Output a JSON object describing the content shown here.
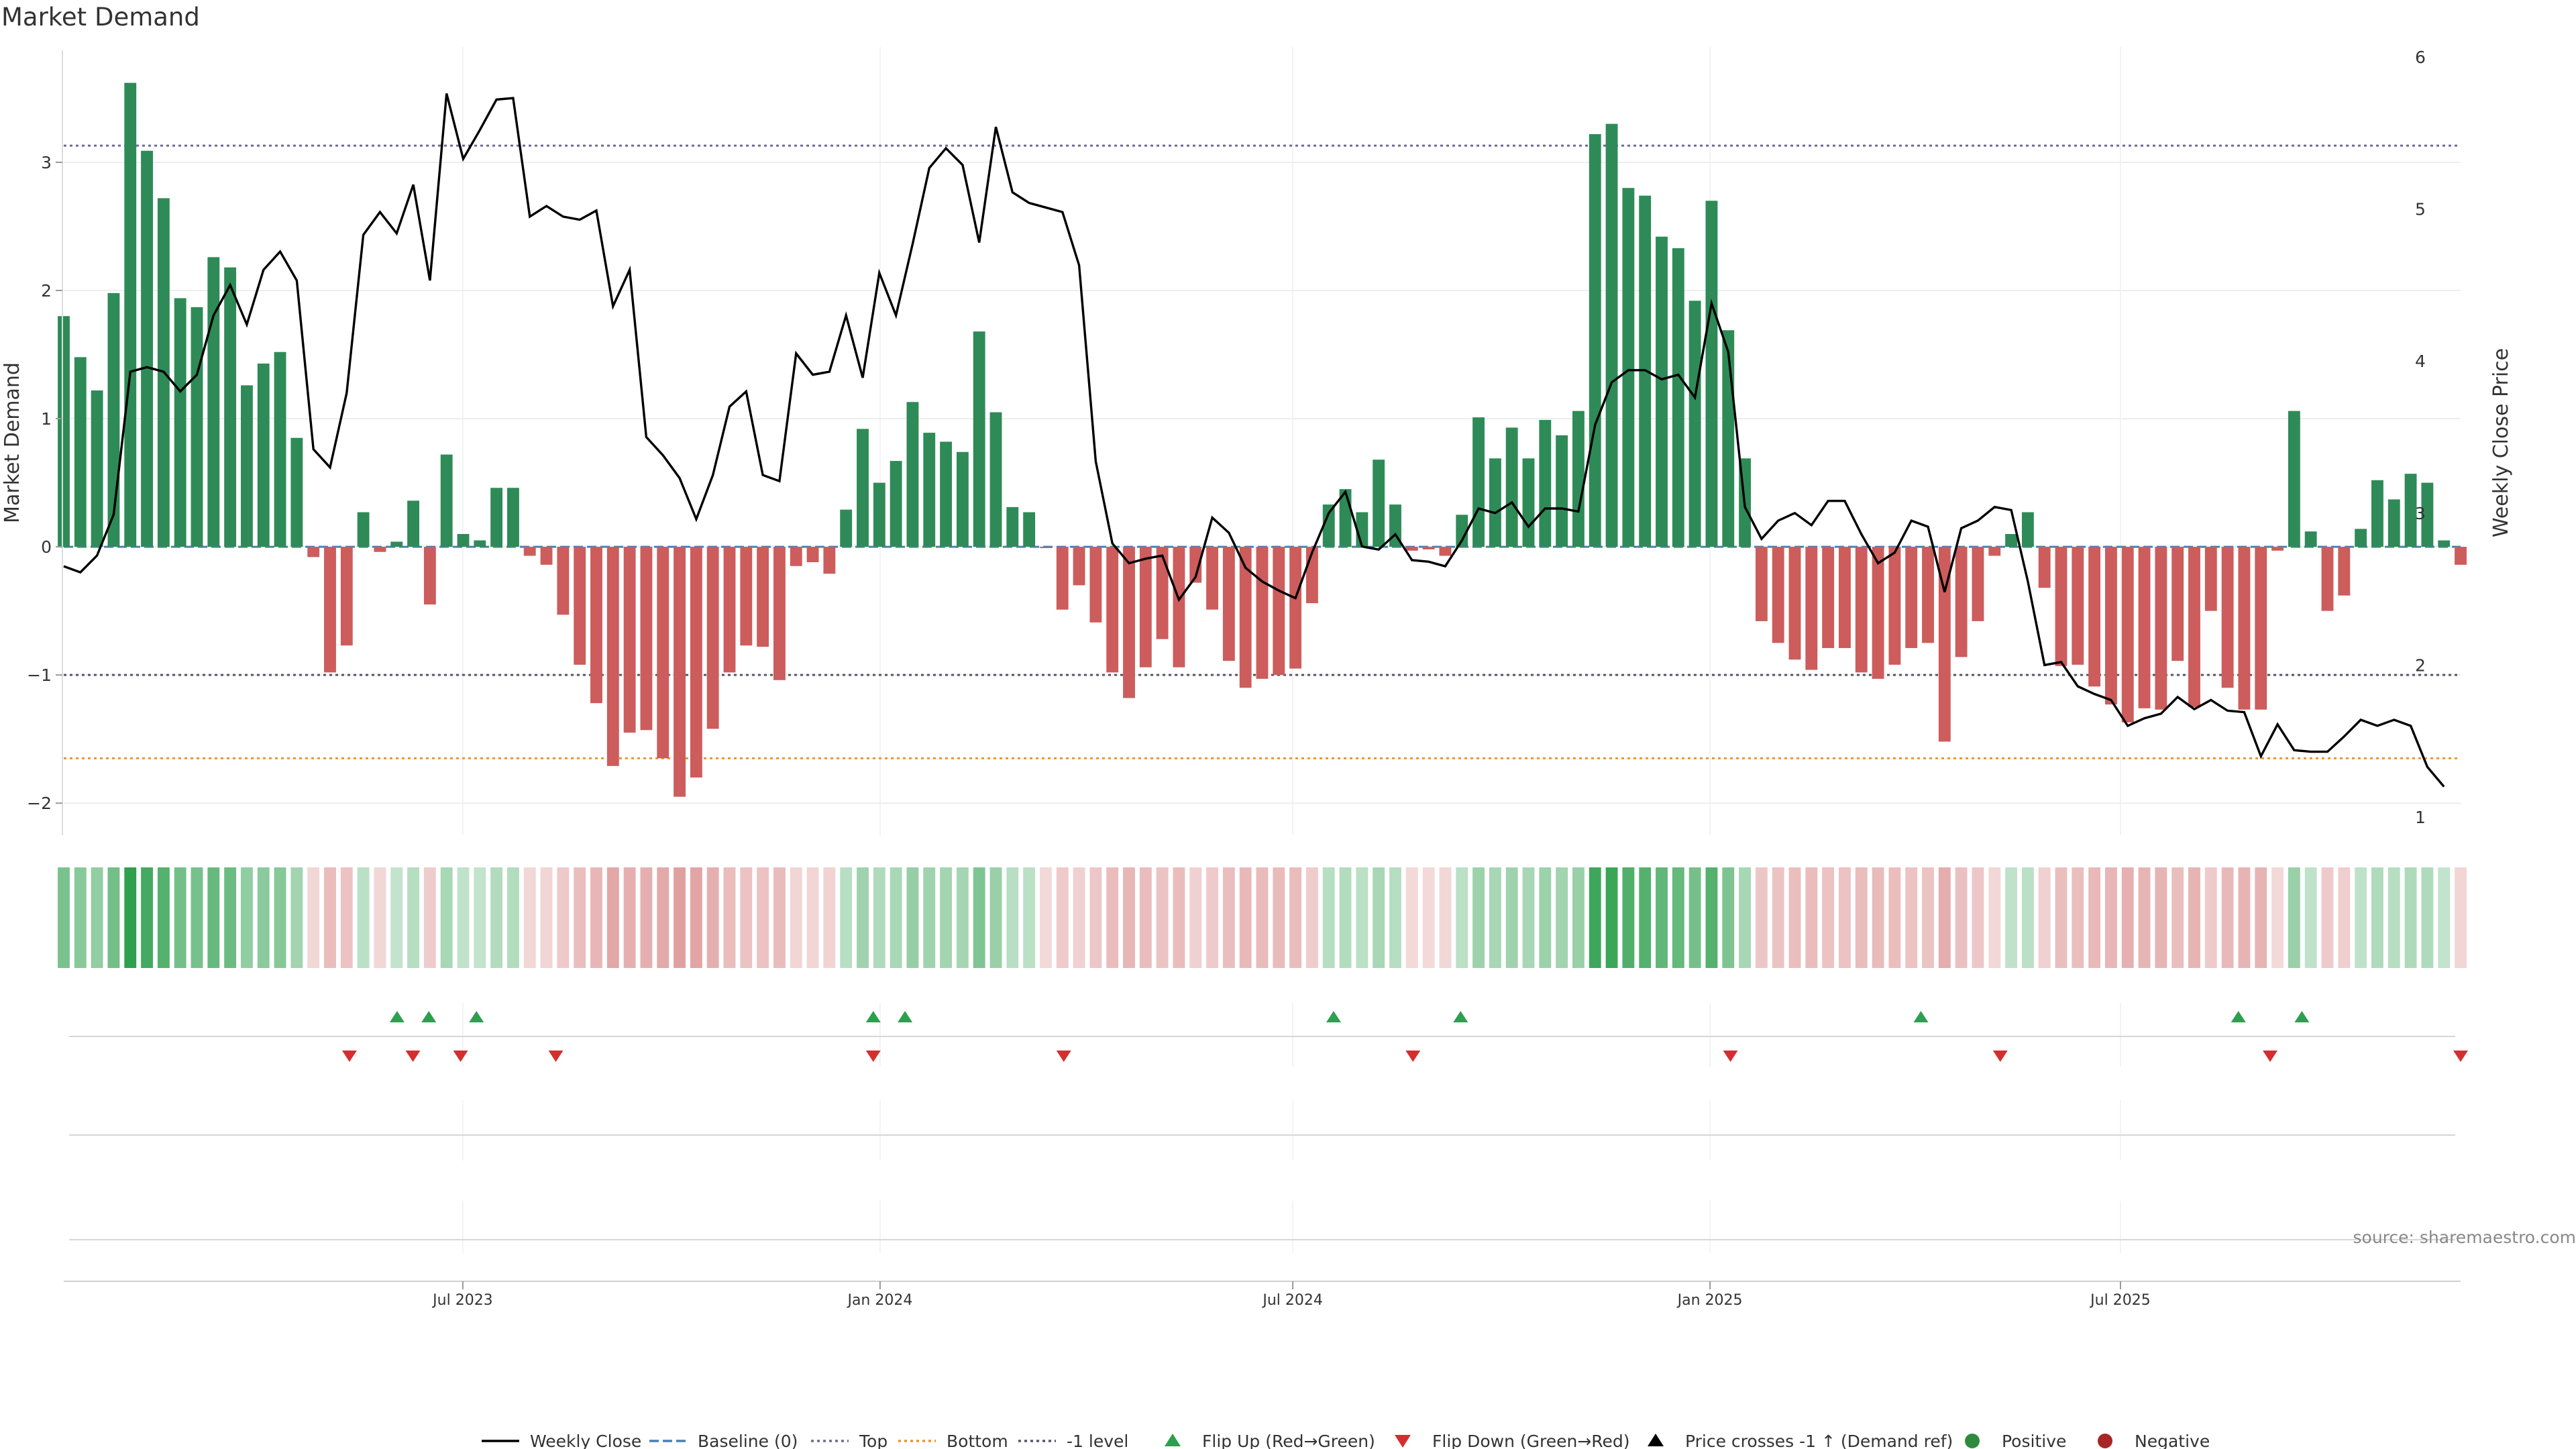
{
  "chart_data": {
    "type": "bar",
    "title": "Market Demand",
    "ylabel_left": "Market Demand",
    "ylabel_right": "Weekly Close Price",
    "source": "source: sharemaestro.com",
    "x_start": "2023-01-06",
    "x_end": "2025-11-28",
    "x_ticks": [
      {
        "date": "2023-07-01",
        "label": "Jul 2023"
      },
      {
        "date": "2024-01-01",
        "label": "Jan 2024"
      },
      {
        "date": "2024-07-01",
        "label": "Jul 2024"
      },
      {
        "date": "2025-01-01",
        "label": "Jan 2025"
      },
      {
        "date": "2025-07-01",
        "label": "Jul 2025"
      }
    ],
    "y_left": {
      "range": [
        -2.25,
        3.9
      ],
      "ticks": [
        {
          "v": 3,
          "label": "3"
        },
        {
          "v": 2,
          "label": "2"
        },
        {
          "v": 1,
          "label": "1"
        },
        {
          "v": 0,
          "label": "0"
        },
        {
          "v": -1,
          "label": "−1"
        },
        {
          "v": -2,
          "label": "−2"
        }
      ]
    },
    "y_right": {
      "range": [
        1,
        6
      ],
      "ticks": [
        {
          "v": 6,
          "label": "6"
        },
        {
          "v": 5,
          "label": "5"
        },
        {
          "v": 4,
          "label": "4"
        },
        {
          "v": 3,
          "label": "3"
        },
        {
          "v": 2,
          "label": "2"
        },
        {
          "v": 1,
          "label": "1"
        }
      ]
    },
    "reference_lines": {
      "top": 3.13,
      "minus_one": -1.0,
      "bottom": -1.65,
      "baseline": 0
    },
    "demand": [
      1.8,
      1.48,
      1.22,
      1.98,
      3.62,
      3.09,
      2.72,
      1.94,
      1.87,
      2.26,
      2.18,
      1.26,
      1.43,
      1.52,
      0.85,
      -0.08,
      -0.98,
      -0.77,
      0.27,
      -0.04,
      0.04,
      0.36,
      -0.45,
      0.72,
      0.1,
      0.05,
      0.46,
      0.46,
      -0.07,
      -0.14,
      -0.53,
      -0.92,
      -1.22,
      -1.71,
      -1.45,
      -1.43,
      -1.65,
      -1.95,
      -1.8,
      -1.42,
      -0.98,
      -0.77,
      -0.78,
      -1.04,
      -0.15,
      -0.12,
      -0.21,
      0.29,
      0.92,
      0.5,
      0.67,
      1.13,
      0.89,
      0.82,
      0.74,
      1.68,
      1.05,
      0.31,
      0.27,
      -0.01,
      -0.49,
      -0.3,
      -0.59,
      -0.98,
      -1.18,
      -0.94,
      -0.72,
      -0.94,
      -0.28,
      -0.49,
      -0.89,
      -1.1,
      -1.03,
      -1.0,
      -0.95,
      -0.44,
      0.33,
      0.45,
      0.27,
      0.68,
      0.33,
      -0.03,
      -0.02,
      -0.07,
      0.25,
      1.01,
      0.69,
      0.93,
      0.69,
      0.99,
      0.87,
      1.06,
      3.22,
      3.3,
      2.8,
      2.74,
      2.42,
      2.33,
      1.92,
      2.7,
      1.69,
      0.69,
      -0.58,
      -0.75,
      -0.88,
      -0.96,
      -0.79,
      -0.79,
      -0.98,
      -1.03,
      -0.92,
      -0.79,
      -0.75,
      -1.52,
      -0.86,
      -0.58,
      -0.07,
      0.1,
      0.27,
      -0.32,
      -0.93,
      -0.92,
      -1.09,
      -1.23,
      -1.37,
      -1.26,
      -1.27,
      -0.89,
      -1.25,
      -0.5,
      -1.1,
      -1.27,
      -1.27,
      -0.03,
      1.06,
      0.12,
      -0.5,
      -0.38,
      0.14,
      0.52,
      0.37,
      0.57,
      0.5,
      0.05,
      -0.14
    ],
    "weekly_close": [
      2.65,
      2.61,
      2.72,
      2.99,
      3.93,
      3.96,
      3.93,
      3.8,
      3.91,
      4.3,
      4.5,
      4.24,
      4.6,
      4.72,
      4.53,
      3.42,
      3.3,
      3.79,
      4.83,
      4.98,
      4.84,
      5.16,
      4.53,
      5.76,
      5.33,
      5.52,
      5.72,
      5.73,
      4.95,
      5.02,
      4.95,
      4.93,
      4.99,
      4.36,
      4.6,
      3.5,
      3.38,
      3.23,
      2.96,
      3.25,
      3.7,
      3.8,
      3.25,
      3.21,
      4.05,
      3.91,
      3.93,
      4.3,
      3.89,
      4.58,
      4.3,
      4.77,
      5.27,
      5.4,
      5.29,
      4.78,
      5.54,
      5.11,
      5.04,
      5.01,
      4.98,
      4.63,
      3.34,
      2.8,
      2.67,
      2.7,
      2.72,
      2.43,
      2.58,
      2.97,
      2.87,
      2.64,
      2.55,
      2.49,
      2.44,
      2.74,
      3.0,
      3.14,
      2.78,
      2.76,
      2.86,
      2.69,
      2.68,
      2.65,
      2.82,
      3.03,
      3.0,
      3.07,
      2.91,
      3.03,
      3.03,
      3.01,
      3.58,
      3.86,
      3.94,
      3.94,
      3.88,
      3.91,
      3.76,
      4.38,
      4.06,
      3.04,
      2.83,
      2.95,
      3.0,
      2.92,
      3.08,
      3.08,
      2.86,
      2.67,
      2.74,
      2.95,
      2.91,
      2.48,
      2.9,
      2.95,
      3.04,
      3.02,
      2.55,
      2.0,
      2.02,
      1.86,
      1.81,
      1.77,
      1.6,
      1.65,
      1.68,
      1.79,
      1.71,
      1.77,
      1.7,
      1.69,
      1.4,
      1.61,
      1.44,
      1.43,
      1.43,
      1.53,
      1.64,
      1.6,
      1.64,
      1.6,
      1.33,
      1.2
    ],
    "flip_up": [
      "2023-06-02",
      "2023-06-16",
      "2023-07-07",
      "2023-12-29",
      "2024-01-12",
      "2024-07-19",
      "2024-09-13",
      "2025-04-04",
      "2025-08-22",
      "2025-09-19"
    ],
    "flip_down": [
      "2023-05-12",
      "2023-06-09",
      "2023-06-30",
      "2023-08-11",
      "2023-12-29",
      "2024-03-22",
      "2024-08-23",
      "2025-01-10",
      "2025-05-09",
      "2025-09-05",
      "2025-11-28"
    ],
    "legend": [
      {
        "key": "weekly_close",
        "label": "Weekly Close",
        "color": "#000000",
        "marker": "line"
      },
      {
        "key": "baseline",
        "label": "Baseline (0)",
        "color": "#4a7fb5",
        "marker": "dash"
      },
      {
        "key": "top",
        "label": "Top",
        "color": "#6b6b9a",
        "marker": "dot"
      },
      {
        "key": "bottom",
        "label": "Bottom",
        "color": "#e8962e",
        "marker": "dot"
      },
      {
        "key": "minus_one",
        "label": "-1 level",
        "color": "#555566",
        "marker": "dot"
      },
      {
        "key": "flip_up",
        "label": "Flip Up (Red→Green)",
        "color": "#2e9e4f",
        "marker": "tri-up"
      },
      {
        "key": "flip_down",
        "label": "Flip Down (Green→Red)",
        "color": "#d32f2f",
        "marker": "tri-down"
      },
      {
        "key": "price_cross",
        "label": "Price crosses -1 ↑ (Demand ref)",
        "color": "#000000",
        "marker": "tri-up"
      },
      {
        "key": "positive",
        "label": "Positive",
        "color": "#2e8b3e",
        "marker": "circle"
      },
      {
        "key": "negative",
        "label": "Negative",
        "color": "#a82626",
        "marker": "circle"
      }
    ],
    "colors": {
      "positive_bar": "#2e8b57",
      "negative_bar": "#cd5c5c",
      "price_line": "#000000"
    }
  }
}
